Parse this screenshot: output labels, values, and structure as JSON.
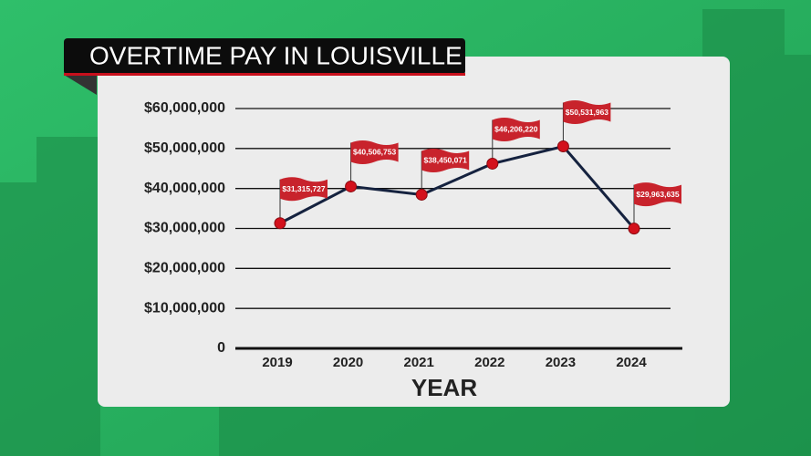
{
  "chart_data": {
    "type": "line",
    "title": "OVERTIME PAY IN LOUISVILLE",
    "x_label": "YEAR",
    "categories": [
      "2019",
      "2020",
      "2021",
      "2022",
      "2023",
      "2024"
    ],
    "values": [
      31315727,
      40506753,
      38450071,
      46206220,
      50531963,
      29963635
    ],
    "value_labels": [
      "$31,315,727",
      "$40,506,753",
      "$38,450,071",
      "$46,206,220",
      "$50,531,963",
      "$29,963,635"
    ],
    "color": "#15223f",
    "marker_color": "#d3111c",
    "ylim": [
      0,
      60000000
    ],
    "yticks": [
      0,
      {
        "value": 10000000,
        "label": "$10,000,000"
      },
      {
        "value": 20000000,
        "label": "$20,000,000"
      },
      {
        "value": 30000000,
        "label": "$30,000,000"
      },
      {
        "value": 40000000,
        "label": "$40,000,000"
      },
      {
        "value": 50000000,
        "label": "$50,000,000"
      },
      {
        "value": 60000000,
        "label": "$60,000,000"
      }
    ],
    "grid": true
  }
}
